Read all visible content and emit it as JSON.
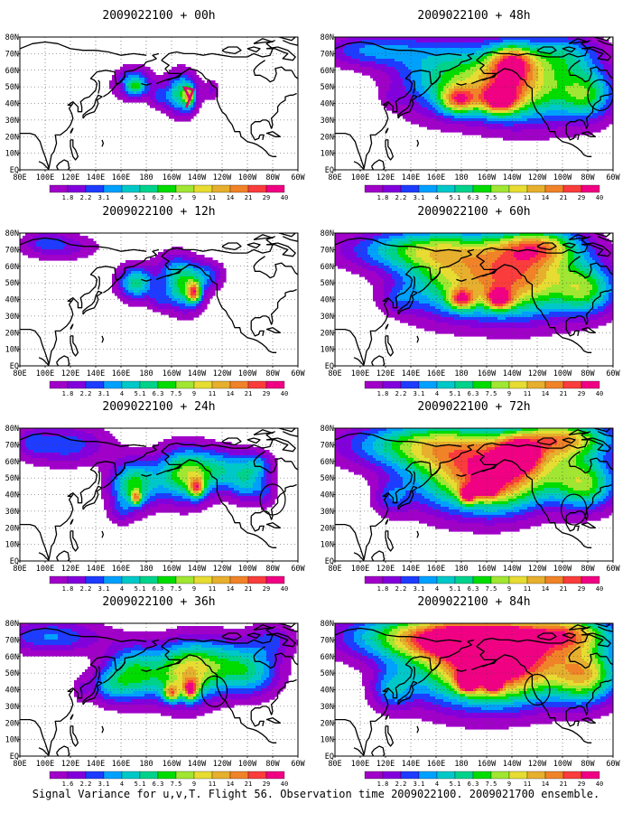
{
  "caption": "Signal Variance for u,v,T. Flight 56. Observation time 2009022100. 2009021700 ensemble.",
  "lon_ticks": [
    "80E",
    "100E",
    "120E",
    "140E",
    "160E",
    "180",
    "160W",
    "140W",
    "120W",
    "100W",
    "80W",
    "60W"
  ],
  "lat_ticks": [
    "EQ",
    "10N",
    "20N",
    "30N",
    "40N",
    "50N",
    "60N",
    "70N",
    "80N"
  ],
  "colorbar": {
    "levels": [
      "1.8",
      "2.2",
      "3.1",
      "4",
      "5.1",
      "6.3",
      "7.5",
      "9",
      "11",
      "14",
      "21",
      "29",
      "40"
    ],
    "levels_panel7": [
      "1.6",
      "2.2",
      "3.1",
      "4",
      "5.1",
      "6.3",
      "7.5",
      "9",
      "11",
      "14",
      "21",
      "29",
      "40"
    ],
    "colors": [
      "#a000c8",
      "#8200dc",
      "#1e3cff",
      "#00a0ff",
      "#00c8c8",
      "#00d28c",
      "#00dc00",
      "#a0e632",
      "#e6dc32",
      "#e6af2d",
      "#f08228",
      "#fa3c3c",
      "#f00082"
    ]
  },
  "chart_data": [
    {
      "type": "heatmap",
      "title": "2009022100 + 00h",
      "lead_hours": 0,
      "col": 0,
      "row": 0,
      "blobs": [
        [
          170,
          52,
          14,
          9,
          2.6
        ],
        [
          172,
          50,
          6,
          4,
          1.5
        ],
        [
          -152,
          46,
          12,
          12,
          3.4
        ],
        [
          -146,
          44,
          4,
          6,
          3.0
        ],
        [
          -170,
          44,
          8,
          7,
          1.2
        ],
        [
          -128,
          48,
          6,
          6,
          1.0
        ],
        [
          160,
          50,
          3,
          2,
          -0.6
        ]
      ],
      "circles": [],
      "marker": {
        "type": "loop",
        "lon": -147,
        "lat": 44
      }
    },
    {
      "type": "heatmap",
      "title": "2009022100 + 12h",
      "lead_hours": 12,
      "col": 0,
      "row": 1,
      "blobs": [
        [
          172,
          50,
          14,
          10,
          3.2
        ],
        [
          -150,
          48,
          15,
          14,
          3.6
        ],
        [
          -142,
          44,
          5,
          6,
          4.0
        ],
        [
          -130,
          55,
          12,
          8,
          1.5
        ],
        [
          110,
          72,
          30,
          8,
          1.4
        ],
        [
          100,
          76,
          14,
          6,
          0.7
        ],
        [
          -170,
          40,
          8,
          7,
          1.0
        ],
        [
          -160,
          60,
          14,
          10,
          1.0
        ]
      ],
      "circles": []
    },
    {
      "type": "heatmap",
      "title": "2009022100 + 24h",
      "lead_hours": 24,
      "col": 0,
      "row": 2,
      "blobs": [
        [
          170,
          46,
          18,
          14,
          3.6
        ],
        [
          172,
          38,
          4,
          4,
          3.2
        ],
        [
          -150,
          52,
          22,
          16,
          3.8
        ],
        [
          -140,
          44,
          6,
          6,
          3.6
        ],
        [
          -118,
          55,
          25,
          12,
          2.4
        ],
        [
          -100,
          45,
          14,
          10,
          1.8
        ],
        [
          115,
          70,
          35,
          12,
          1.8
        ],
        [
          90,
          72,
          10,
          8,
          0.8
        ],
        [
          160,
          30,
          10,
          8,
          1.0
        ],
        [
          -85,
          40,
          8,
          8,
          1.0
        ],
        [
          -92,
          58,
          12,
          8,
          1.6
        ]
      ],
      "circles": [
        {
          "lon": -80,
          "lat": 37
        }
      ]
    },
    {
      "type": "heatmap",
      "title": "2009022100 + 36h",
      "lead_hours": 36,
      "col": 0,
      "row": 3,
      "blobs": [
        [
          170,
          50,
          22,
          16,
          3.4
        ],
        [
          -150,
          50,
          24,
          18,
          4.0
        ],
        [
          -145,
          40,
          6,
          6,
          4.0
        ],
        [
          -160,
          38,
          6,
          5,
          3.4
        ],
        [
          -120,
          55,
          28,
          16,
          2.6
        ],
        [
          -95,
          50,
          22,
          14,
          2.0
        ],
        [
          105,
          72,
          40,
          10,
          2.0
        ],
        [
          150,
          42,
          16,
          10,
          1.6
        ],
        [
          -80,
          70,
          18,
          10,
          1.4
        ],
        [
          128,
          40,
          6,
          8,
          0.8
        ]
      ],
      "circles": [
        {
          "lon": -126,
          "lat": 39
        }
      ]
    },
    {
      "type": "heatmap",
      "title": "2009022100 + 48h",
      "lead_hours": 48,
      "col": 1,
      "row": 0,
      "blobs": [
        [
          170,
          55,
          40,
          22,
          3.2
        ],
        [
          -145,
          52,
          30,
          20,
          3.6
        ],
        [
          -150,
          42,
          14,
          8,
          4.0
        ],
        [
          178,
          42,
          14,
          8,
          3.7
        ],
        [
          -110,
          50,
          40,
          22,
          2.8
        ],
        [
          110,
          72,
          40,
          10,
          2.0
        ],
        [
          -80,
          45,
          20,
          14,
          2.4
        ],
        [
          -100,
          70,
          30,
          12,
          1.8
        ],
        [
          -140,
          65,
          16,
          10,
          3.4
        ],
        [
          125,
          44,
          8,
          6,
          0.5
        ]
      ],
      "circles": [
        {
          "lon": -70,
          "lat": 45
        }
      ]
    },
    {
      "type": "heatmap",
      "title": "2009022100 + 60h",
      "lead_hours": 60,
      "col": 1,
      "row": 1,
      "blobs": [
        [
          150,
          70,
          60,
          12,
          3.2
        ],
        [
          170,
          52,
          40,
          22,
          3.4
        ],
        [
          -145,
          52,
          35,
          22,
          3.6
        ],
        [
          -110,
          55,
          40,
          24,
          3.0
        ],
        [
          -80,
          45,
          22,
          14,
          2.6
        ],
        [
          -120,
          72,
          30,
          10,
          3.2
        ],
        [
          130,
          40,
          14,
          8,
          1.0
        ],
        [
          -150,
          40,
          10,
          6,
          3.5
        ],
        [
          180,
          40,
          10,
          6,
          3.5
        ]
      ],
      "circles": []
    },
    {
      "type": "heatmap",
      "title": "2009022100 + 72h",
      "lead_hours": 72,
      "col": 1,
      "row": 2,
      "blobs": [
        [
          150,
          70,
          60,
          14,
          3.6
        ],
        [
          175,
          52,
          40,
          22,
          3.8
        ],
        [
          -150,
          50,
          30,
          20,
          4.0
        ],
        [
          -135,
          64,
          14,
          8,
          5.0
        ],
        [
          -110,
          58,
          40,
          22,
          3.4
        ],
        [
          -80,
          45,
          22,
          14,
          2.8
        ],
        [
          -100,
          74,
          40,
          10,
          3.6
        ],
        [
          -160,
          45,
          8,
          6,
          4.4
        ],
        [
          -175,
          40,
          6,
          5,
          4.4
        ],
        [
          125,
          38,
          14,
          10,
          1.5
        ]
      ],
      "circles": [
        {
          "lon": -91,
          "lat": 31
        }
      ]
    },
    {
      "type": "heatmap",
      "title": "2009022100 + 84h",
      "lead_hours": 84,
      "col": 1,
      "row": 3,
      "blobs": [
        [
          150,
          72,
          60,
          14,
          4.4
        ],
        [
          175,
          55,
          42,
          24,
          4.0
        ],
        [
          -150,
          55,
          32,
          22,
          4.4
        ],
        [
          -140,
          66,
          14,
          8,
          5.6
        ],
        [
          -110,
          58,
          42,
          24,
          3.8
        ],
        [
          -80,
          48,
          24,
          16,
          3.2
        ],
        [
          -170,
          70,
          30,
          8,
          4.6
        ],
        [
          -175,
          45,
          8,
          6,
          4.8
        ],
        [
          -155,
          44,
          6,
          5,
          4.6
        ],
        [
          125,
          40,
          16,
          12,
          2.0
        ],
        [
          -100,
          74,
          40,
          10,
          3.8
        ]
      ],
      "circles": [
        {
          "lon": -120,
          "lat": 40
        }
      ]
    }
  ]
}
